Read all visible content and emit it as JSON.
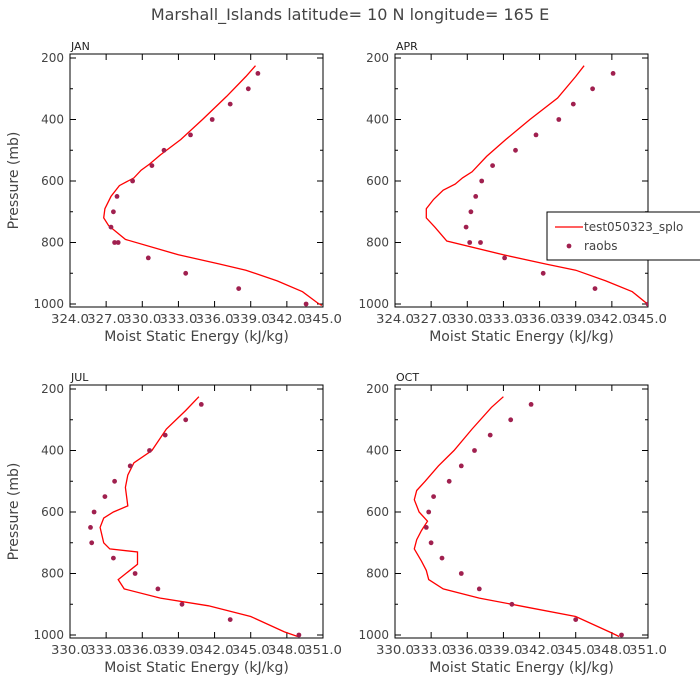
{
  "title": "Marshall_Islands  latitude= 10 N longitude= 165 E",
  "colors": {
    "model": "#ff0000",
    "obs": "#a0204f",
    "axis": "#000000",
    "text": "#444444"
  },
  "legend": {
    "model_label": "test050323_splo",
    "obs_label": "raobs"
  },
  "chart_data": [
    {
      "type": "line",
      "panel": "JAN",
      "xlabel": "Moist Static Energy (kJ/kg)",
      "ylabel": "Pressure (mb)",
      "xlim": [
        324.0,
        345.0
      ],
      "ylim": [
        1000,
        200
      ],
      "xticks": [
        324.0,
        327.0,
        330.0,
        333.0,
        336.0,
        339.0,
        342.0,
        345.0
      ],
      "xticklabels": [
        "324.0",
        "327.0",
        "330.0",
        "333.0",
        "336.0",
        "339.0",
        "342.0",
        "345.0"
      ],
      "yticks": [
        200,
        400,
        600,
        800,
        1000
      ],
      "series": [
        {
          "name": "test050323_splo",
          "kind": "line",
          "x": [
            339.4,
            338.6,
            337.0,
            335.0,
            333.2,
            331.5,
            330.6,
            329.9,
            329.3,
            328.1,
            327.4,
            326.9,
            326.8,
            327.2,
            328.6,
            333.0,
            336.4,
            338.6,
            341.2,
            343.3,
            344.5,
            344.9
          ],
          "y": [
            225,
            260,
            325,
            400,
            465,
            515,
            545,
            565,
            590,
            615,
            650,
            690,
            720,
            745,
            790,
            840,
            870,
            890,
            925,
            960,
            995,
            1005
          ]
        },
        {
          "name": "raobs",
          "kind": "points",
          "x": [
            339.6,
            338.8,
            337.3,
            335.8,
            334.0,
            331.8,
            330.8,
            329.2,
            327.9,
            327.6,
            327.4,
            327.7,
            328.0,
            330.5,
            333.6,
            338.0,
            343.6
          ],
          "y": [
            250,
            300,
            350,
            400,
            450,
            500,
            550,
            600,
            650,
            700,
            750,
            800,
            800,
            850,
            900,
            950,
            1000
          ]
        }
      ]
    },
    {
      "type": "line",
      "panel": "APR",
      "xlabel": "Moist Static Energy (kJ/kg)",
      "ylabel": "",
      "xlim": [
        324.0,
        345.0
      ],
      "ylim": [
        1000,
        200
      ],
      "xticks": [
        324.0,
        327.0,
        330.0,
        333.0,
        336.0,
        339.0,
        342.0,
        345.0
      ],
      "xticklabels": [
        "324.0",
        "327.0",
        "330.0",
        "333.0",
        "336.0",
        "339.0",
        "342.0",
        "345.0"
      ],
      "yticks": [
        200,
        400,
        600,
        800,
        1000
      ],
      "series": [
        {
          "name": "test050323_splo",
          "kind": "line",
          "x": [
            339.7,
            339.0,
            337.5,
            335.2,
            333.2,
            331.6,
            330.4,
            329.6,
            329.0,
            328.0,
            327.2,
            326.6,
            326.6,
            327.3,
            328.3,
            333.0,
            336.5,
            339.0,
            341.5,
            343.7,
            344.8,
            345.0
          ],
          "y": [
            225,
            260,
            330,
            400,
            465,
            520,
            570,
            590,
            610,
            630,
            660,
            690,
            720,
            750,
            795,
            840,
            870,
            890,
            925,
            960,
            995,
            1005
          ]
        },
        {
          "name": "raobs",
          "kind": "points",
          "x": [
            342.1,
            340.4,
            338.8,
            337.6,
            335.7,
            334.0,
            332.1,
            331.2,
            330.7,
            330.3,
            329.9,
            330.2,
            331.1,
            333.1,
            336.3,
            340.6,
            345.0
          ],
          "y": [
            250,
            300,
            350,
            400,
            450,
            500,
            550,
            600,
            650,
            700,
            750,
            800,
            800,
            850,
            900,
            950,
            1000
          ]
        }
      ]
    },
    {
      "type": "line",
      "panel": "JUL",
      "xlabel": "Moist Static Energy (kJ/kg)",
      "ylabel": "Pressure (mb)",
      "xlim": [
        330.0,
        351.0
      ],
      "ylim": [
        1000,
        200
      ],
      "xticks": [
        330.0,
        333.0,
        336.0,
        339.0,
        342.0,
        345.0,
        348.0,
        351.0
      ],
      "xticklabels": [
        "330.0",
        "333.0",
        "336.0",
        "339.0",
        "342.0",
        "345.0",
        "348.0",
        "351.0"
      ],
      "yticks": [
        200,
        400,
        600,
        800,
        1000
      ],
      "series": [
        {
          "name": "test050323_splo",
          "kind": "line",
          "x": [
            340.7,
            339.6,
            338.0,
            336.8,
            335.3,
            334.8,
            334.6,
            334.8,
            333.6,
            332.8,
            332.5,
            332.8,
            333.3,
            335.6,
            335.6,
            334.0,
            334.5,
            337.5,
            341.5,
            345.0,
            347.8,
            348.9
          ],
          "y": [
            225,
            270,
            330,
            400,
            440,
            480,
            520,
            580,
            600,
            620,
            650,
            700,
            720,
            730,
            770,
            820,
            850,
            880,
            905,
            940,
            990,
            1005
          ]
        },
        {
          "name": "raobs",
          "kind": "points",
          "x": [
            340.9,
            339.6,
            337.9,
            336.6,
            335.0,
            333.7,
            332.9,
            332.0,
            331.7,
            331.8,
            333.6,
            335.4,
            337.3,
            339.3,
            343.3,
            349.0
          ],
          "y": [
            250,
            300,
            350,
            400,
            450,
            500,
            550,
            600,
            650,
            700,
            750,
            800,
            850,
            900,
            950,
            1000
          ]
        }
      ]
    },
    {
      "type": "line",
      "panel": "OCT",
      "xlabel": "Moist Static Energy (kJ/kg)",
      "ylabel": "",
      "xlim": [
        330.0,
        351.0
      ],
      "ylim": [
        1000,
        200
      ],
      "xticks": [
        330.0,
        333.0,
        336.0,
        339.0,
        342.0,
        345.0,
        348.0,
        351.0
      ],
      "xticklabels": [
        "330.0",
        "333.0",
        "336.0",
        "339.0",
        "342.0",
        "345.0",
        "348.0",
        "351.0"
      ],
      "yticks": [
        200,
        400,
        600,
        800,
        1000
      ],
      "series": [
        {
          "name": "test050323_splo",
          "kind": "line",
          "x": [
            339.0,
            338.0,
            336.4,
            334.9,
            333.6,
            332.5,
            331.8,
            331.6,
            332.0,
            332.7,
            332.2,
            331.8,
            331.6,
            332.2,
            332.6,
            332.8,
            334.0,
            337.0,
            341.0,
            345.0,
            347.8,
            348.6
          ],
          "y": [
            225,
            260,
            330,
            400,
            450,
            500,
            530,
            560,
            600,
            630,
            660,
            690,
            720,
            760,
            790,
            820,
            850,
            880,
            910,
            940,
            990,
            1005
          ]
        },
        {
          "name": "raobs",
          "kind": "points",
          "x": [
            341.3,
            339.6,
            337.9,
            336.6,
            335.5,
            334.5,
            333.2,
            332.8,
            332.6,
            333.0,
            333.9,
            335.5,
            337.0,
            339.7,
            345.0,
            348.8
          ],
          "y": [
            250,
            300,
            350,
            400,
            450,
            500,
            550,
            600,
            650,
            700,
            750,
            800,
            850,
            900,
            950,
            1000
          ]
        }
      ]
    }
  ]
}
